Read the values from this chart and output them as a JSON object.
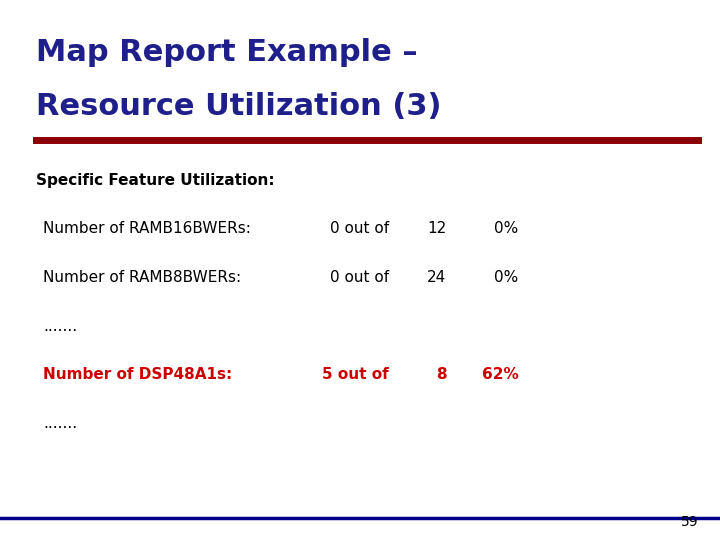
{
  "title_line1": "Map Report Example –",
  "title_line2": "Resource Utilization (3)",
  "title_color": "#1F1F8B",
  "subtitle": "Specific Feature Utilization:",
  "subtitle_color": "#000000",
  "rows": [
    {
      "label": "Number of RAMB16BWERs:",
      "mid": "0 out of",
      "num": "12",
      "pct": "0%",
      "highlight": false
    },
    {
      "label": "Number of RAMB8BWERs:",
      "mid": "0 out of",
      "num": "24",
      "pct": "0%",
      "highlight": false
    },
    {
      "label": ".......",
      "mid": "",
      "num": "",
      "pct": "",
      "highlight": false
    },
    {
      "label": "Number of DSP48A1s:",
      "mid": "5 out of",
      "num": "8",
      "pct": "62%",
      "highlight": true
    },
    {
      "label": ".......",
      "mid": "",
      "num": "",
      "pct": "",
      "highlight": false
    }
  ],
  "highlight_color": "#CC0000",
  "normal_color": "#000000",
  "title_underline_color": "#8B0000",
  "bottom_line_color": "#00008B",
  "page_number": "59",
  "bg_color": "#FFFFFF"
}
